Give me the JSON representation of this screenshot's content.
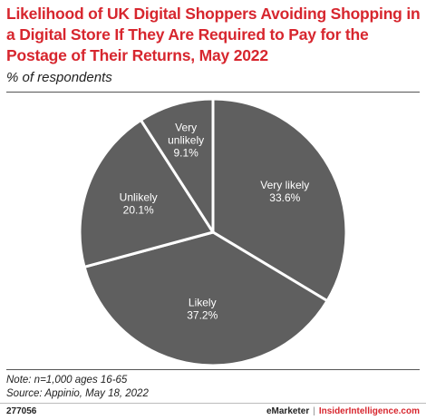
{
  "header": {
    "title": "Likelihood of UK Digital Shoppers Avoiding Shopping in a Digital Store If They Are Required to Pay for the Postage of Their Returns, May 2022",
    "subtitle": "% of respondents"
  },
  "chart_data": {
    "type": "pie",
    "title": "Likelihood of UK Digital Shoppers Avoiding Shopping in a Digital Store If They Are Required to Pay for the Postage of Their Returns, May 2022",
    "subtitle": "% of respondents",
    "slices": [
      {
        "label": "Very likely",
        "value": 33.6,
        "value_label": "33.6%"
      },
      {
        "label": "Likely",
        "value": 37.2,
        "value_label": "37.2%"
      },
      {
        "label": "Unlikely",
        "value": 20.1,
        "value_label": "20.1%"
      },
      {
        "label": "Very unlikely",
        "value": 9.1,
        "value_label": "9.1%"
      }
    ],
    "slice_color": "#5f5f5f",
    "separator_color": "#ffffff"
  },
  "footer": {
    "note": "Note: n=1,000 ages 16-65",
    "source": "Source: Appinio, May 18, 2022",
    "chart_id": "277056",
    "brand": "eMarketer",
    "separator": "|",
    "brand2": "InsiderIntelligence.com"
  },
  "colors": {
    "accent": "#d7262e",
    "slice": "#5f5f5f"
  }
}
